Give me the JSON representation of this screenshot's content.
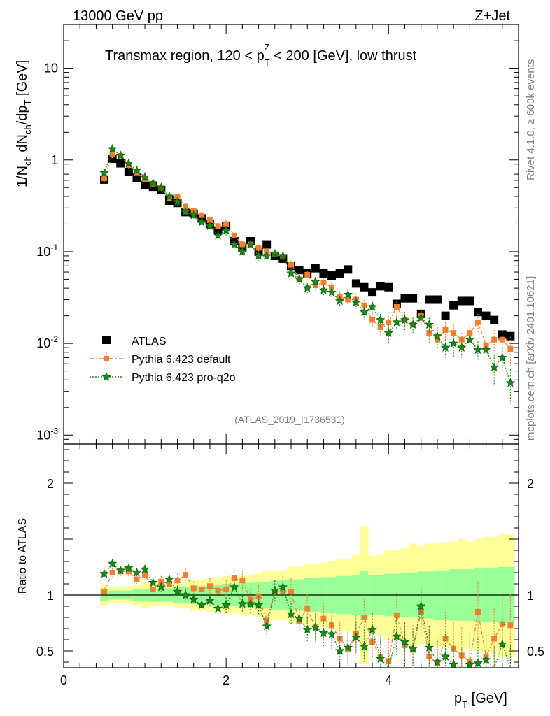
{
  "header": {
    "energy_label": "13000 GeV pp",
    "process_label": "Z+Jet"
  },
  "side_labels": {
    "rivet": "Rivet 4.1.0, ≥ 600k events",
    "mcplots": "mcplots.cern.ch [arXiv:2401.10621]"
  },
  "colors": {
    "atlas": "#000000",
    "default": "#f08030",
    "proq2o": "#1a8c1a",
    "band_inner": "#99ff99",
    "band_outer": "#ffff99"
  },
  "chart_data": [
    {
      "type": "scatter",
      "title": "Transmax region, 120 < p_T^Z < 200 [GeV], low thrust",
      "title_parts": {
        "pre": "Transmax region, 120 < p",
        "sub": "T",
        "sup": "Z",
        "post": " < 200 [GeV], low thrust"
      },
      "ylabel": "1/N_ch dN_ch/dp_T [GeV]",
      "yscale": "log",
      "ylim": [
        0.0008,
        30
      ],
      "xlim": [
        0,
        5.6
      ],
      "y_ticks": [
        {
          "value": 10,
          "label": "10"
        },
        {
          "value": 1,
          "label": "1"
        },
        {
          "value": 0.1,
          "label": "10^-1"
        },
        {
          "value": 0.01,
          "label": "10^-2"
        },
        {
          "value": 0.001,
          "label": "10^-3"
        }
      ],
      "analysis_id": "(ATLAS_2019_I1736531)",
      "legend": [
        {
          "key": "atlas",
          "label": "ATLAS"
        },
        {
          "key": "default",
          "label": "Pythia 6.423 default"
        },
        {
          "key": "proq2o",
          "label": "Pythia 6.423 pro-q2o"
        }
      ],
      "x": [
        0.5,
        0.6,
        0.7,
        0.8,
        0.9,
        1.0,
        1.1,
        1.2,
        1.3,
        1.4,
        1.5,
        1.6,
        1.7,
        1.8,
        1.9,
        2.0,
        2.1,
        2.2,
        2.3,
        2.4,
        2.5,
        2.6,
        2.7,
        2.8,
        2.9,
        3.0,
        3.1,
        3.2,
        3.3,
        3.4,
        3.5,
        3.6,
        3.7,
        3.8,
        3.9,
        4.0,
        4.1,
        4.2,
        4.3,
        4.4,
        4.5,
        4.6,
        4.7,
        4.8,
        4.9,
        5.0,
        5.1,
        5.2,
        5.3,
        5.4,
        5.5
      ],
      "series": [
        {
          "name": "ATLAS",
          "key": "atlas",
          "marker": "square",
          "values": [
            0.61,
            1.03,
            0.92,
            0.74,
            0.64,
            0.53,
            0.51,
            0.47,
            0.36,
            0.34,
            0.27,
            0.26,
            0.23,
            0.2,
            0.17,
            0.19,
            0.13,
            0.11,
            0.13,
            0.1,
            0.12,
            0.09,
            0.084,
            0.07,
            0.063,
            0.058,
            0.066,
            0.058,
            0.055,
            0.058,
            0.064,
            0.045,
            0.041,
            0.036,
            0.042,
            0.041,
            0.027,
            0.031,
            0.031,
            0.021,
            0.03,
            0.03,
            0.02,
            0.026,
            0.029,
            0.029,
            0.022,
            0.02,
            0.018,
            0.0125,
            0.012
          ]
        },
        {
          "name": "Pythia 6.423 default",
          "key": "default",
          "marker": "square-small",
          "values": [
            0.63,
            1.15,
            1.1,
            0.88,
            0.73,
            0.61,
            0.55,
            0.5,
            0.38,
            0.4,
            0.31,
            0.28,
            0.25,
            0.22,
            0.19,
            0.2,
            0.15,
            0.12,
            0.12,
            0.11,
            0.1,
            0.094,
            0.088,
            0.072,
            0.05,
            0.056,
            0.043,
            0.046,
            0.041,
            0.032,
            0.03,
            0.03,
            0.026,
            0.018,
            0.015,
            0.017,
            0.025,
            0.018,
            0.016,
            0.02,
            0.013,
            0.011,
            0.014,
            0.013,
            0.011,
            0.013,
            0.017,
            0.0095,
            0.011,
            0.011,
            0.0087
          ],
          "err": [
            0.06,
            0.1,
            0.09,
            0.07,
            0.05,
            0.04,
            0.04,
            0.04,
            0.03,
            0.03,
            0.03,
            0.02,
            0.02,
            0.02,
            0.02,
            0.02,
            0.01,
            0.01,
            0.01,
            0.01,
            0.01,
            0.009,
            0.009,
            0.008,
            0.006,
            0.006,
            0.005,
            0.006,
            0.005,
            0.004,
            0.004,
            0.005,
            0.004,
            0.003,
            0.003,
            0.003,
            0.004,
            0.003,
            0.003,
            0.004,
            0.003,
            0.002,
            0.003,
            0.003,
            0.002,
            0.003,
            0.004,
            0.002,
            0.003,
            0.003,
            0.003
          ]
        },
        {
          "name": "Pythia 6.423 pro-q2o",
          "key": "proq2o",
          "marker": "star",
          "values": [
            0.72,
            1.32,
            1.12,
            0.92,
            0.77,
            0.65,
            0.56,
            0.5,
            0.4,
            0.35,
            0.27,
            0.25,
            0.21,
            0.19,
            0.15,
            0.17,
            0.12,
            0.1,
            0.12,
            0.09,
            0.09,
            0.095,
            0.09,
            0.058,
            0.05,
            0.04,
            0.047,
            0.038,
            0.036,
            0.029,
            0.034,
            0.028,
            0.022,
            0.025,
            0.018,
            0.013,
            0.017,
            0.018,
            0.016,
            0.019,
            0.016,
            0.012,
            0.009,
            0.01,
            0.009,
            0.011,
            0.0085,
            0.0085,
            0.0055,
            0.007,
            0.0037
          ],
          "err": [
            0.05,
            0.1,
            0.08,
            0.06,
            0.05,
            0.04,
            0.04,
            0.03,
            0.03,
            0.03,
            0.02,
            0.02,
            0.02,
            0.02,
            0.01,
            0.02,
            0.01,
            0.01,
            0.01,
            0.01,
            0.008,
            0.009,
            0.009,
            0.006,
            0.006,
            0.005,
            0.006,
            0.005,
            0.005,
            0.004,
            0.005,
            0.004,
            0.004,
            0.004,
            0.003,
            0.003,
            0.003,
            0.004,
            0.003,
            0.004,
            0.003,
            0.003,
            0.002,
            0.003,
            0.002,
            0.003,
            0.002,
            0.002,
            0.002,
            0.002,
            0.0015
          ]
        }
      ]
    },
    {
      "type": "scatter",
      "ylabel": "Ratio to ATLAS",
      "xlabel": "p_T [GeV]",
      "xlabel_parts": {
        "pre": "p",
        "sub": "T",
        "post": " [GeV]"
      },
      "xlim": [
        0,
        5.6
      ],
      "ylim": [
        0.35,
        2.35
      ],
      "x_ticks": [
        {
          "value": 0,
          "label": "0"
        },
        {
          "value": 2,
          "label": "2"
        },
        {
          "value": 4,
          "label": "4"
        }
      ],
      "y_ticks": [
        {
          "value": 0.5,
          "label": "0.5"
        },
        {
          "value": 1,
          "label": "1"
        },
        {
          "value": 2,
          "label": "2"
        }
      ],
      "x": [
        0.5,
        0.6,
        0.7,
        0.8,
        0.9,
        1.0,
        1.1,
        1.2,
        1.3,
        1.4,
        1.5,
        1.6,
        1.7,
        1.8,
        1.9,
        2.0,
        2.1,
        2.2,
        2.3,
        2.4,
        2.5,
        2.6,
        2.7,
        2.8,
        2.9,
        3.0,
        3.1,
        3.2,
        3.3,
        3.4,
        3.5,
        3.6,
        3.7,
        3.8,
        3.9,
        4.0,
        4.1,
        4.2,
        4.3,
        4.4,
        4.5,
        4.6,
        4.7,
        4.8,
        4.9,
        5.0,
        5.1,
        5.2,
        5.3,
        5.4,
        5.5
      ],
      "band_inner_halfwidth": [
        0.05,
        0.04,
        0.04,
        0.04,
        0.05,
        0.05,
        0.06,
        0.06,
        0.06,
        0.07,
        0.07,
        0.08,
        0.08,
        0.09,
        0.09,
        0.1,
        0.1,
        0.11,
        0.11,
        0.12,
        0.12,
        0.13,
        0.13,
        0.14,
        0.14,
        0.15,
        0.15,
        0.16,
        0.16,
        0.17,
        0.17,
        0.18,
        0.22,
        0.18,
        0.18,
        0.19,
        0.19,
        0.2,
        0.2,
        0.21,
        0.21,
        0.22,
        0.22,
        0.23,
        0.23,
        0.23,
        0.24,
        0.24,
        0.24,
        0.25,
        0.25
      ],
      "band_outer_halfwidth": [
        0.09,
        0.07,
        0.07,
        0.08,
        0.09,
        0.12,
        0.1,
        0.1,
        0.09,
        0.11,
        0.12,
        0.14,
        0.14,
        0.15,
        0.15,
        0.17,
        0.16,
        0.18,
        0.18,
        0.2,
        0.22,
        0.22,
        0.22,
        0.25,
        0.26,
        0.28,
        0.28,
        0.29,
        0.3,
        0.32,
        0.32,
        0.36,
        0.62,
        0.35,
        0.36,
        0.4,
        0.4,
        0.42,
        0.46,
        0.44,
        0.46,
        0.46,
        0.47,
        0.48,
        0.5,
        0.48,
        0.5,
        0.52,
        0.52,
        0.55,
        0.55
      ],
      "series": [
        {
          "name": "Pythia 6.423 default",
          "key": "default",
          "values": [
            1.03,
            1.2,
            1.21,
            1.21,
            1.14,
            1.18,
            1.05,
            1.12,
            1.1,
            1.13,
            1.18,
            1.06,
            1.05,
            1.08,
            1.04,
            1.05,
            1.15,
            1.13,
            0.96,
            0.99,
            0.77,
            1.03,
            1.03,
            1.03,
            0.77,
            0.88,
            0.71,
            0.79,
            0.73,
            0.61,
            0.52,
            0.65,
            0.8,
            0.58,
            0.45,
            0.41,
            0.82,
            0.55,
            0.51,
            0.85,
            0.45,
            0.39,
            0.61,
            0.52,
            0.46,
            0.4,
            0.85,
            0.45,
            0.61,
            0.74,
            0.73
          ],
          "err": [
            0.04,
            0.04,
            0.04,
            0.04,
            0.04,
            0.04,
            0.05,
            0.05,
            0.05,
            0.06,
            0.06,
            0.06,
            0.07,
            0.07,
            0.08,
            0.08,
            0.08,
            0.09,
            0.09,
            0.1,
            0.1,
            0.1,
            0.11,
            0.12,
            0.12,
            0.13,
            0.13,
            0.14,
            0.14,
            0.15,
            0.16,
            0.17,
            0.17,
            0.18,
            0.19,
            0.2,
            0.2,
            0.21,
            0.22,
            0.22,
            0.23,
            0.23,
            0.24,
            0.24,
            0.25,
            0.26,
            0.26,
            0.27,
            0.27,
            0.28,
            0.28
          ]
        },
        {
          "name": "Pythia 6.423 pro-q2o",
          "key": "proq2o",
          "values": [
            1.19,
            1.28,
            1.22,
            1.24,
            1.2,
            1.23,
            1.11,
            1.07,
            1.14,
            1.03,
            1.0,
            0.96,
            0.91,
            0.95,
            0.88,
            0.91,
            1.07,
            0.92,
            0.92,
            0.91,
            0.72,
            1.04,
            1.07,
            0.83,
            0.79,
            0.69,
            0.71,
            0.66,
            0.65,
            0.5,
            0.53,
            0.62,
            0.54,
            0.69,
            0.43,
            0.32,
            0.63,
            0.58,
            0.52,
            0.9,
            0.53,
            0.4,
            0.45,
            0.38,
            0.31,
            0.38,
            0.39,
            0.42,
            0.31,
            0.56,
            0.31
          ],
          "err": [
            0.03,
            0.03,
            0.03,
            0.03,
            0.03,
            0.03,
            0.04,
            0.04,
            0.04,
            0.05,
            0.05,
            0.05,
            0.06,
            0.06,
            0.06,
            0.07,
            0.07,
            0.07,
            0.08,
            0.08,
            0.09,
            0.09,
            0.1,
            0.1,
            0.11,
            0.11,
            0.12,
            0.12,
            0.13,
            0.13,
            0.14,
            0.14,
            0.15,
            0.15,
            0.16,
            0.16,
            0.17,
            0.17,
            0.18,
            0.18,
            0.19,
            0.19,
            0.2,
            0.2,
            0.21,
            0.21,
            0.22,
            0.22,
            0.23,
            0.23,
            0.24
          ]
        }
      ]
    }
  ]
}
